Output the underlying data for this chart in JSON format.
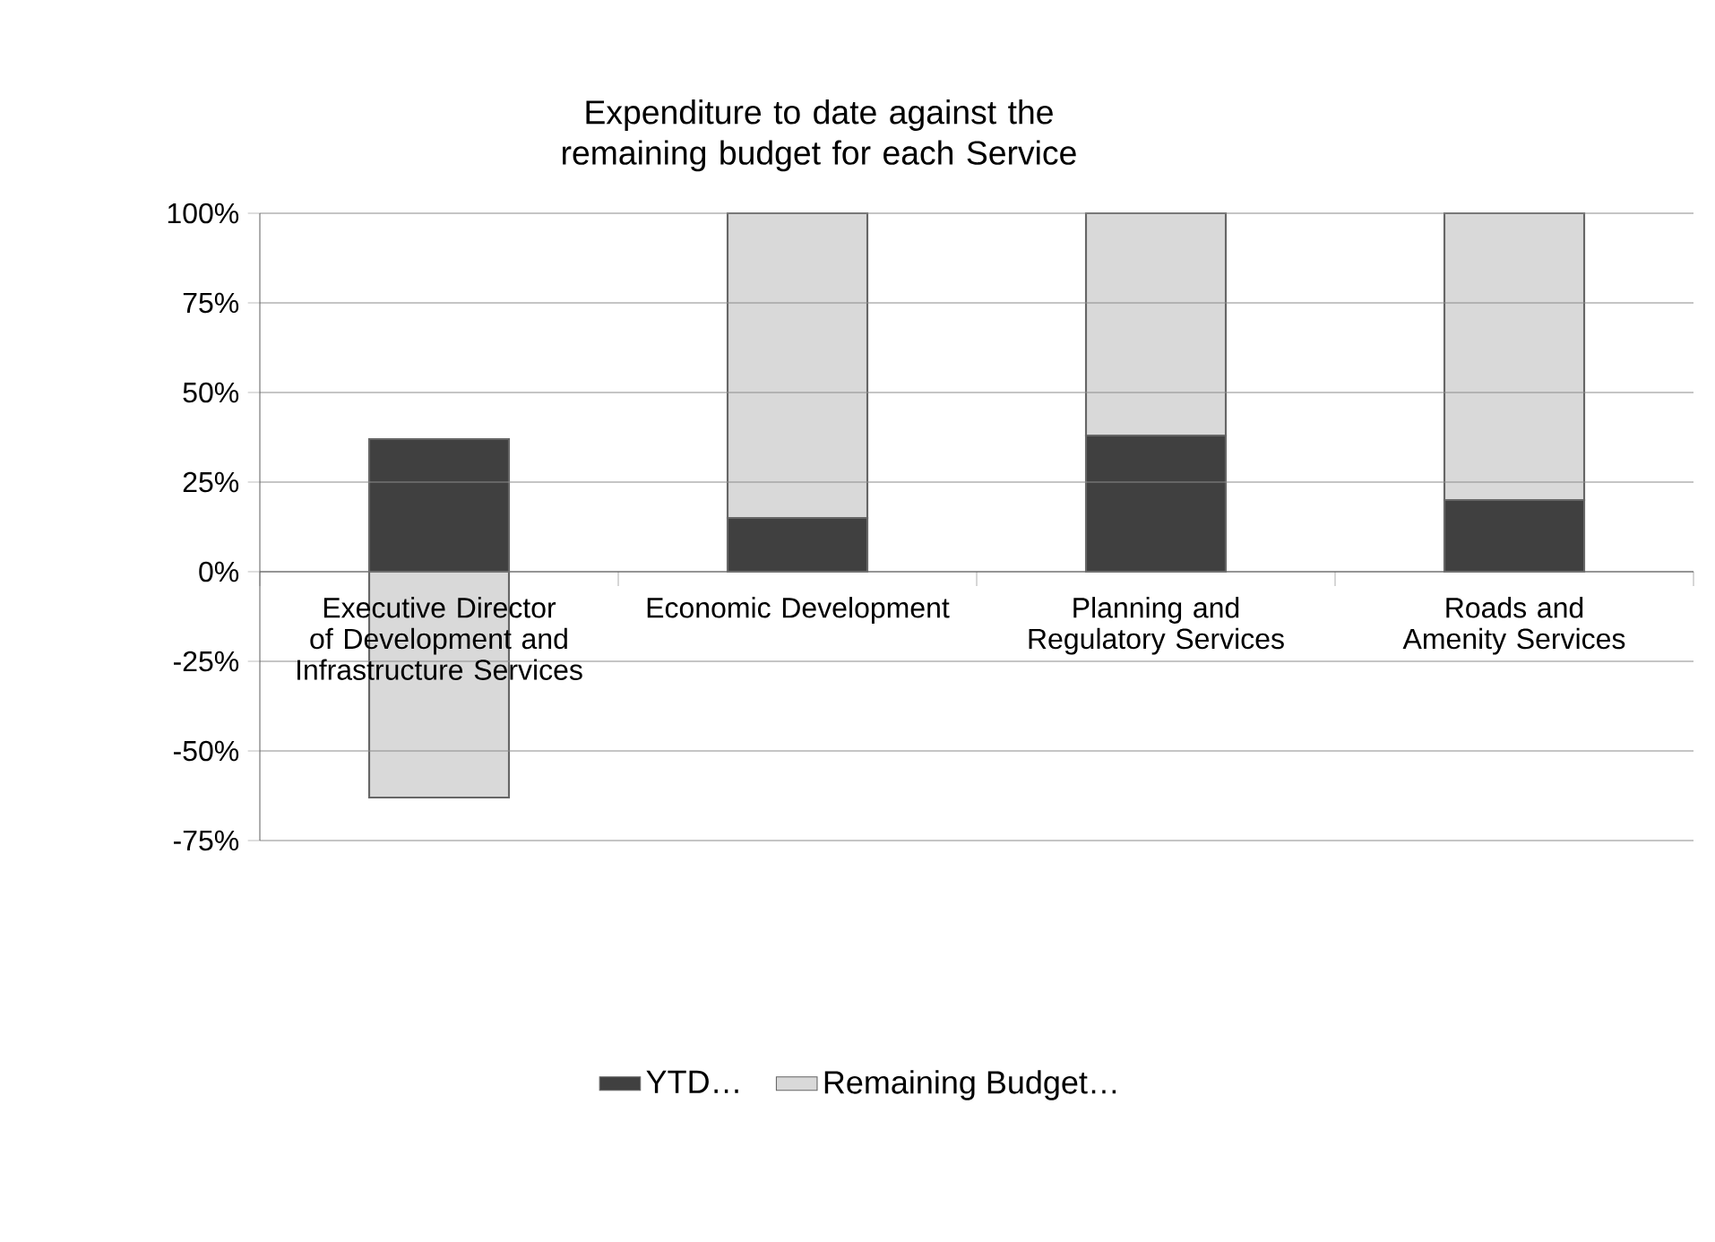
{
  "chart_data": {
    "type": "bar",
    "stacked": true,
    "title": "Expenditure to date against the remaining budget for each Service",
    "categories": [
      "Executive Director of Development and Infrastructure Services",
      "Economic Development",
      "Planning and Regulatory Services",
      "Roads and Amenity Services"
    ],
    "series": [
      {
        "name": "YTD…",
        "color": "#404040",
        "values": [
          37,
          15,
          38,
          20
        ]
      },
      {
        "name": "Remaining Budget…",
        "color": "#d9d9d9",
        "values": [
          -63,
          85,
          62,
          80
        ]
      }
    ],
    "ylim": [
      -75,
      100
    ],
    "yticks": [
      {
        "value": -75,
        "label": "-75%"
      },
      {
        "value": -50,
        "label": "-50%"
      },
      {
        "value": -25,
        "label": "-25%"
      },
      {
        "value": 0,
        "label": "0%"
      },
      {
        "value": 25,
        "label": "25%"
      },
      {
        "value": 50,
        "label": "50%"
      },
      {
        "value": 75,
        "label": "75%"
      },
      {
        "value": 100,
        "label": "100%"
      }
    ],
    "grid": "y",
    "legend": "bottom"
  }
}
